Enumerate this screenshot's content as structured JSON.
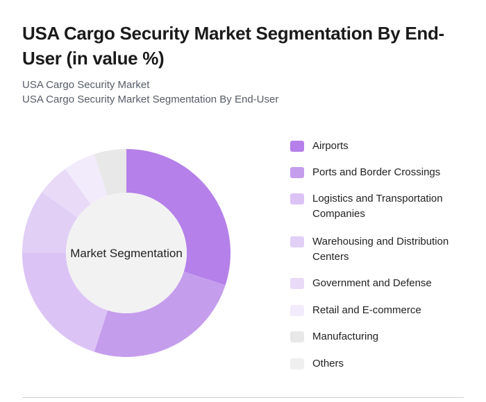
{
  "title": "USA Cargo Security Market Segmentation By End-User (in value %)",
  "subtitles": [
    "USA Cargo Security Market",
    "USA Cargo Security Market Segmentation By End-User"
  ],
  "chart_data": {
    "type": "pie",
    "donut": true,
    "center_label": "Market Segmentation",
    "legend_position": "right",
    "categories": [
      "Airports",
      "Ports and Border Crossings",
      "Logistics and Transportation Companies",
      "Warehousing and Distribution Centers",
      "Government and Defense",
      "Retail and E-commerce",
      "Manufacturing",
      "Others"
    ],
    "values": [
      30,
      25,
      20,
      10,
      5,
      5,
      5,
      0
    ],
    "colors": [
      "#b580ea",
      "#c59ded",
      "#dcc3f5",
      "#e1cff6",
      "#e9dbf8",
      "#f2ebfb",
      "#e8e8e8",
      "#efefef"
    ]
  }
}
